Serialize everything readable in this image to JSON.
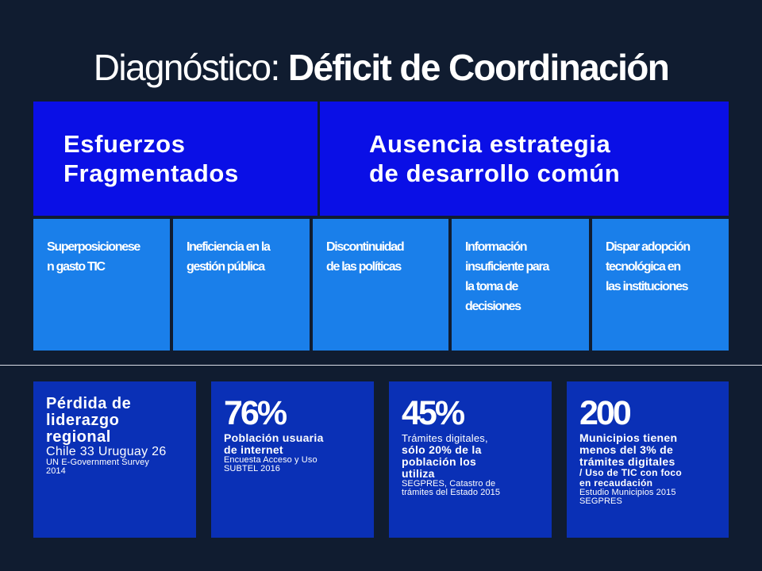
{
  "title": {
    "light": "Diagnóstico:",
    "bold": "Déficit de Coordinación"
  },
  "headers": [
    {
      "line1": "Esfuerzos",
      "line2": "Fragmentados"
    },
    {
      "line1": "Ausencia estrategia",
      "line2": "de desarrollo común"
    }
  ],
  "issues": [
    [
      "Superposicionese",
      "n gasto TIC"
    ],
    [
      "Ineficiencia en la",
      "gestión pública"
    ],
    [
      "Discontinuidad",
      "de las políticas"
    ],
    [
      "Información",
      "insuficiente para",
      "la toma de",
      "decisiones"
    ],
    [
      "Dispar adopción",
      "tecnológica en",
      "las instituciones"
    ]
  ],
  "stats": {
    "leadership": {
      "line1": "Pérdida de",
      "line2": "liderazgo",
      "line3": "regional",
      "detail": "Chile 33 Uruguay 26",
      "source1": "UN E-Government Survey",
      "source2": "2014"
    },
    "internet": {
      "value": "76%",
      "line1": "Población usuaria",
      "line2": "de internet",
      "source1": "Encuesta Acceso y Uso",
      "source2": "SUBTEL 2016"
    },
    "tramites": {
      "value": "45%",
      "line1": "Trámites digitales,",
      "line2": "sólo 20% de la",
      "line3": "población los",
      "line4": "utiliza",
      "source1": "SEGPRES, Catastro de",
      "source2": "trámites del Estado 2015"
    },
    "municipios": {
      "value": "200",
      "line1": "Municipios tienen",
      "line2": "menos del 3% de",
      "line3": "trámites digitales",
      "line4": "/ Uso de TIC con foco",
      "line5": "en recaudación",
      "source1": "Estudio Municipios 2015",
      "source2": "SEGPRES"
    }
  },
  "colors": {
    "background": "#101c30",
    "header_blue": "#0a0fe6",
    "issue_blue": "#1a7fea",
    "stat_blue": "#0a30b6"
  }
}
